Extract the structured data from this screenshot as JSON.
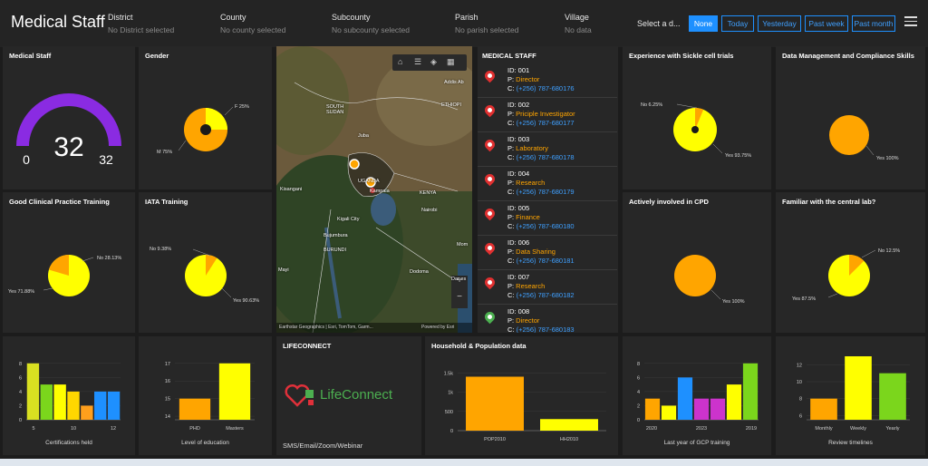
{
  "header": {
    "title": "Medical Staff",
    "filters": [
      {
        "label": "District",
        "value": "No District selected"
      },
      {
        "label": "County",
        "value": "No county selected"
      },
      {
        "label": "Subcounty",
        "value": "No subcounty selected"
      },
      {
        "label": "Parish",
        "value": "No parish selected"
      },
      {
        "label": "Village",
        "value": "No data"
      }
    ],
    "date_select_label": "Select a d...",
    "date_buttons": [
      "None",
      "Today",
      "Yesterday",
      "Past week",
      "Past month"
    ],
    "active_date_button": "None"
  },
  "gauge": {
    "title": "Medical Staff",
    "value": "32",
    "min": "0",
    "max": "32",
    "fraction": 1.0,
    "color": "#8a2be2"
  },
  "gender": {
    "title": "Gender",
    "labels": [
      "F 25%",
      "M 75%"
    ]
  },
  "sickle": {
    "title": "Experience with Sickle cell trials",
    "labels": [
      "No 6.25%",
      "Yes 93.75%"
    ]
  },
  "datamgmt": {
    "title": "Data Management and Compliance Skills",
    "labels": [
      "Yes 100%"
    ]
  },
  "gcp": {
    "title": "Good Clinical Practice Training",
    "labels": [
      "No 28.13%",
      "Yes 71.88%"
    ]
  },
  "iata": {
    "title": "IATA Training",
    "labels": [
      "No 9.38%",
      "Yes 90.63%"
    ]
  },
  "cpd": {
    "title": "Actively involved in CPD",
    "labels": [
      "Yes 100%"
    ]
  },
  "central": {
    "title": "Familiar with the central lab?",
    "labels": [
      "No 12.5%",
      "Yes 87.5%"
    ]
  },
  "map": {
    "labels": [
      "Addis Ab",
      "ETHIOPI",
      "SOUTH SUDAN",
      "Juba",
      "UGANDA",
      "Kampala",
      "Kisangani",
      "KENYA",
      "Nairobi",
      "Kigali City",
      "Bujumbura",
      "BURUNDI",
      "Mom",
      "Mayi",
      "Dodoma",
      "Dar es"
    ],
    "attribution": "Earthstar Geographics | Esri, TomTom, Garm...",
    "powered": "Powered by Esri"
  },
  "staff_list": {
    "title": "MEDICAL STAFF",
    "items": [
      {
        "id": "ID: 001",
        "role": "Director",
        "phone": "(+256) 787-680176"
      },
      {
        "id": "ID: 002",
        "role": "Priciple Investigator",
        "phone": "(+256) 787-680177"
      },
      {
        "id": "ID: 003",
        "role": "Laboratory",
        "phone": "(+256) 787-680178"
      },
      {
        "id": "ID: 004",
        "role": "Research",
        "phone": "(+256) 787-680179"
      },
      {
        "id": "ID: 005",
        "role": "Finance",
        "phone": "(+256) 787-680180"
      },
      {
        "id": "ID: 006",
        "role": "Data Sharing",
        "phone": "(+256) 787-680181"
      },
      {
        "id": "ID: 007",
        "role": "Research",
        "phone": "(+256) 787-680182"
      },
      {
        "id": "ID: 008",
        "role": "Director",
        "phone": "(+256) 787-680183"
      }
    ],
    "p_prefix": "P:",
    "c_prefix": "C:"
  },
  "lifeconnect": {
    "title": "LIFECONNECT",
    "brand": "LifeConnect",
    "footer": "SMS/Email/Zoom/Webinar"
  },
  "chart_data": [
    {
      "type": "bar",
      "title": "",
      "xlabel": "Certifications held",
      "x_ticks": [
        "5",
        "10",
        "12"
      ],
      "y_ticks": [
        "0",
        "2",
        "4",
        "6",
        "8"
      ],
      "ylim": [
        0,
        9
      ],
      "values": [
        8,
        5,
        5,
        4,
        2,
        4,
        4
      ],
      "colors": [
        "#d9e021",
        "#7bd61c",
        "#ffff00",
        "#ffd700",
        "#ff9f1c",
        "#1e90ff",
        "#1e90ff"
      ]
    },
    {
      "type": "bar",
      "title": "",
      "xlabel": "Level of education",
      "categories": [
        "PHD",
        "Masters"
      ],
      "y_ticks": [
        "14",
        "15",
        "16",
        "17"
      ],
      "ylim": [
        13.8,
        17.4
      ],
      "values": [
        15,
        17
      ],
      "colors": [
        "#ffa500",
        "#ffff00"
      ]
    },
    {
      "type": "bar",
      "title": "Household & Population data",
      "xlabel": "",
      "categories": [
        "POP2010",
        "HH2010"
      ],
      "y_ticks": [
        "0",
        "500",
        "1k",
        "1.5k"
      ],
      "ylim": [
        0,
        1600
      ],
      "values": [
        1400,
        300
      ],
      "colors": [
        "#ffa500",
        "#ffff00"
      ]
    },
    {
      "type": "bar",
      "title": "",
      "xlabel": "Last year of GCP training",
      "x_ticks": [
        "2020",
        "2023",
        "2019"
      ],
      "y_ticks": [
        "0",
        "2",
        "4",
        "6",
        "8"
      ],
      "ylim": [
        0,
        9
      ],
      "values": [
        3,
        2,
        6,
        3,
        3,
        5,
        8
      ],
      "colors": [
        "#ffa500",
        "#ffff00",
        "#1e90ff",
        "#cc33cc",
        "#cc33cc",
        "#ffff00",
        "#7bd61c"
      ]
    },
    {
      "type": "bar",
      "title": "",
      "xlabel": "Review timelines",
      "categories": [
        "Monthly",
        "Weekly",
        "Yearly"
      ],
      "y_ticks": [
        "6",
        "8",
        "10",
        "12"
      ],
      "ylim": [
        5.5,
        13
      ],
      "values": [
        8,
        13,
        11
      ],
      "colors": [
        "#ffa500",
        "#ffff00",
        "#7bd61c"
      ]
    }
  ]
}
